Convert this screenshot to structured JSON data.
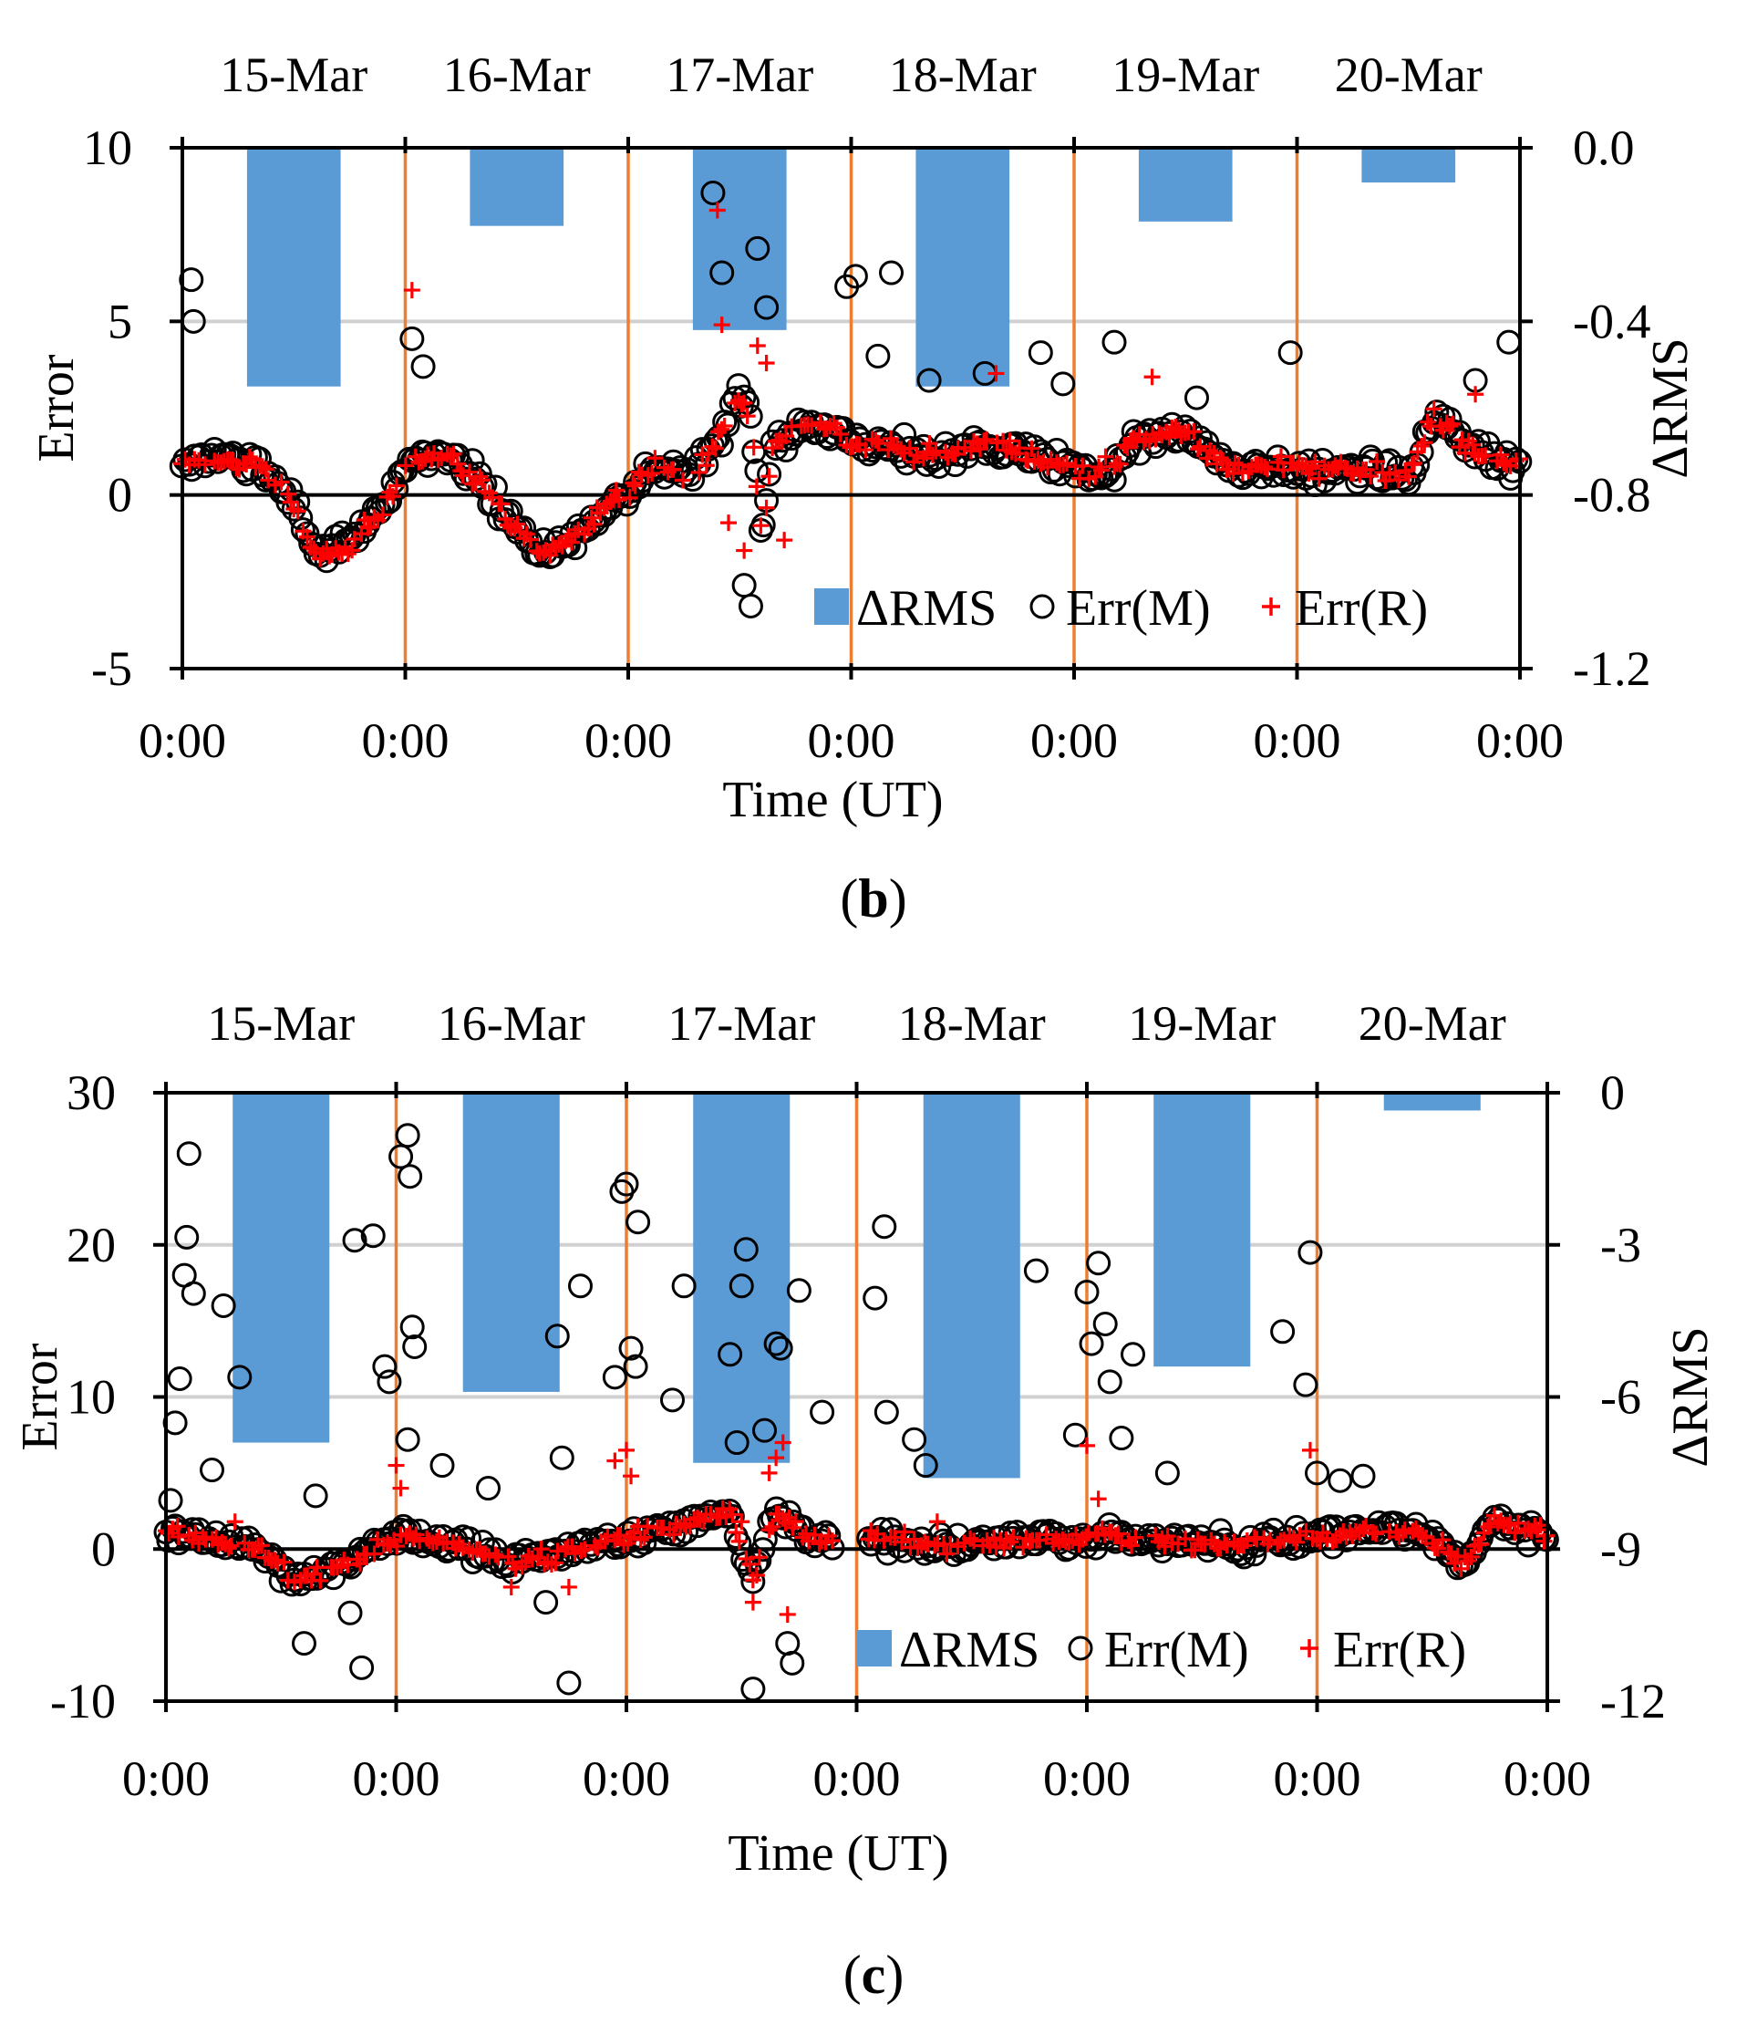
{
  "chart_data": [
    {
      "type": "bar+scatter",
      "panel_label": "b",
      "top_categories": [
        "15-Mar",
        "16-Mar",
        "17-Mar",
        "18-Mar",
        "19-Mar",
        "20-Mar"
      ],
      "bottom_ticks": [
        "0:00",
        "0:00",
        "0:00",
        "0:00",
        "0:00",
        "0:00",
        "0:00"
      ],
      "xlabel": "Time (UT)",
      "ylabel_left": "Error",
      "ylabel_right": "ΔRMS",
      "ylim_left": [
        -5,
        10
      ],
      "yticks_left": [
        "10",
        "5",
        "0",
        "-5"
      ],
      "ylim_right": [
        -1.2,
        0.0
      ],
      "yticks_right": [
        "0.0",
        "-0.4",
        "-0.8",
        "-1.2"
      ],
      "xlim_days": [
        0,
        6
      ],
      "legend": [
        "ΔRMS",
        "Err(M)",
        "Err(R)"
      ],
      "drms": {
        "name": "ΔRMS",
        "values": [
          -0.55,
          -0.18,
          -0.42,
          -0.55,
          -0.17,
          -0.08
        ]
      },
      "err_m_keypoints": [
        [
          0.0,
          0.8
        ],
        [
          0.05,
          1.0
        ],
        [
          0.3,
          1.0
        ],
        [
          0.45,
          0.3
        ],
        [
          0.6,
          -1.7
        ],
        [
          0.75,
          -1.5
        ],
        [
          0.9,
          -0.5
        ],
        [
          1.0,
          0.9
        ],
        [
          1.15,
          1.2
        ],
        [
          1.3,
          0.6
        ],
        [
          1.45,
          -0.5
        ],
        [
          1.6,
          -1.6
        ],
        [
          1.75,
          -1.3
        ],
        [
          1.9,
          -0.4
        ],
        [
          2.1,
          0.8
        ],
        [
          2.3,
          0.6
        ],
        [
          2.4,
          1.6
        ],
        [
          2.5,
          2.8
        ],
        [
          2.55,
          2.2
        ],
        [
          2.6,
          -1.2
        ],
        [
          2.65,
          1.5
        ],
        [
          2.8,
          2.2
        ],
        [
          3.0,
          1.5
        ],
        [
          3.2,
          1.4
        ],
        [
          3.4,
          1.1
        ],
        [
          3.6,
          1.5
        ],
        [
          3.9,
          1.0
        ],
        [
          4.1,
          0.6
        ],
        [
          4.3,
          1.6
        ],
        [
          4.5,
          1.8
        ],
        [
          4.7,
          0.8
        ],
        [
          5.0,
          0.8
        ],
        [
          5.3,
          0.7
        ],
        [
          5.5,
          0.6
        ],
        [
          5.62,
          2.3
        ],
        [
          5.8,
          1.2
        ],
        [
          6.0,
          0.8
        ]
      ],
      "err_m_outliers": [
        [
          0.04,
          6.2
        ],
        [
          0.05,
          5.0
        ],
        [
          1.03,
          4.5
        ],
        [
          1.08,
          3.7
        ],
        [
          2.38,
          8.7
        ],
        [
          2.42,
          6.4
        ],
        [
          2.58,
          7.1
        ],
        [
          2.62,
          5.4
        ],
        [
          2.55,
          -3.2
        ],
        [
          2.52,
          -2.6
        ],
        [
          2.98,
          6.0
        ],
        [
          3.02,
          6.3
        ],
        [
          3.18,
          6.4
        ],
        [
          3.12,
          4.0
        ],
        [
          3.35,
          3.3
        ],
        [
          3.6,
          3.5
        ],
        [
          3.85,
          4.1
        ],
        [
          3.95,
          3.2
        ],
        [
          4.18,
          4.4
        ],
        [
          4.55,
          2.8
        ],
        [
          4.97,
          4.1
        ],
        [
          5.95,
          4.4
        ],
        [
          5.8,
          3.3
        ]
      ],
      "err_r_outliers": [
        [
          1.03,
          5.9
        ],
        [
          2.4,
          8.2
        ],
        [
          2.42,
          4.9
        ],
        [
          2.45,
          -0.8
        ],
        [
          2.52,
          -1.6
        ],
        [
          2.58,
          4.3
        ],
        [
          2.62,
          3.8
        ],
        [
          2.7,
          -1.3
        ],
        [
          3.65,
          3.5
        ],
        [
          4.35,
          3.4
        ],
        [
          5.8,
          2.9
        ]
      ]
    },
    {
      "type": "bar+scatter",
      "panel_label": "c",
      "top_categories": [
        "15-Mar",
        "16-Mar",
        "17-Mar",
        "18-Mar",
        "19-Mar",
        "20-Mar"
      ],
      "bottom_ticks": [
        "0:00",
        "0:00",
        "0:00",
        "0:00",
        "0:00",
        "0:00",
        "0:00"
      ],
      "xlabel": "Time (UT)",
      "ylabel_left": "Error",
      "ylabel_right": "ΔRMS",
      "ylim_left": [
        -10,
        30
      ],
      "yticks_left": [
        "30",
        "20",
        "10",
        "0",
        "-10"
      ],
      "ylim_right": [
        -12,
        0
      ],
      "yticks_right": [
        "0",
        "-3",
        "-6",
        "-9",
        "-12"
      ],
      "xlim_days": [
        0,
        6
      ],
      "legend": [
        "ΔRMS",
        "Err(M)",
        "Err(R)"
      ],
      "drms": {
        "name": "ΔRMS",
        "values": [
          -6.9,
          -5.9,
          -7.3,
          -7.6,
          -5.4,
          -0.35
        ]
      },
      "err_m_keypoints": [
        [
          0.0,
          1.0
        ],
        [
          0.2,
          0.5
        ],
        [
          0.4,
          0.0
        ],
        [
          0.55,
          -2.0
        ],
        [
          0.7,
          -1.5
        ],
        [
          0.85,
          -0.5
        ],
        [
          1.0,
          0.8
        ],
        [
          1.2,
          0.5
        ],
        [
          1.35,
          0.0
        ],
        [
          1.5,
          -1.0
        ],
        [
          1.7,
          -0.3
        ],
        [
          1.9,
          0.5
        ],
        [
          2.1,
          1.0
        ],
        [
          2.3,
          1.8
        ],
        [
          2.45,
          2.5
        ],
        [
          2.55,
          -2.0
        ],
        [
          2.65,
          2.5
        ],
        [
          2.8,
          0.5
        ],
        [
          3.1,
          0.8
        ],
        [
          3.3,
          0.3
        ],
        [
          3.6,
          0.5
        ],
        [
          3.9,
          0.6
        ],
        [
          4.1,
          1.0
        ],
        [
          4.3,
          0.5
        ],
        [
          4.5,
          0.3
        ],
        [
          4.8,
          0.5
        ],
        [
          5.1,
          1.0
        ],
        [
          5.3,
          1.2
        ],
        [
          5.5,
          0.6
        ],
        [
          5.65,
          -1.0
        ],
        [
          5.75,
          1.8
        ],
        [
          6.0,
          1.0
        ]
      ],
      "err_m_outliers": [
        [
          0.02,
          3.2
        ],
        [
          0.04,
          8.3
        ],
        [
          0.06,
          11.2
        ],
        [
          0.08,
          18.0
        ],
        [
          0.09,
          20.5
        ],
        [
          0.1,
          26.0
        ],
        [
          0.12,
          16.8
        ],
        [
          0.2,
          5.2
        ],
        [
          0.25,
          16.0
        ],
        [
          0.32,
          11.3
        ],
        [
          0.6,
          -6.2
        ],
        [
          0.65,
          3.5
        ],
        [
          0.8,
          -4.2
        ],
        [
          0.82,
          20.3
        ],
        [
          0.9,
          20.6
        ],
        [
          0.85,
          -7.8
        ],
        [
          0.95,
          12.0
        ],
        [
          0.97,
          11.0
        ],
        [
          1.02,
          25.8
        ],
        [
          1.05,
          27.2
        ],
        [
          1.06,
          24.5
        ],
        [
          1.07,
          14.6
        ],
        [
          1.08,
          13.3
        ],
        [
          1.05,
          7.2
        ],
        [
          1.2,
          5.5
        ],
        [
          1.4,
          4.0
        ],
        [
          1.7,
          14.0
        ],
        [
          1.72,
          6.0
        ],
        [
          1.75,
          -8.8
        ],
        [
          1.8,
          17.3
        ],
        [
          1.65,
          -3.5
        ],
        [
          1.95,
          11.3
        ],
        [
          1.98,
          23.5
        ],
        [
          2.0,
          24.0
        ],
        [
          2.02,
          13.2
        ],
        [
          2.04,
          12.0
        ],
        [
          2.05,
          21.5
        ],
        [
          2.2,
          9.8
        ],
        [
          2.25,
          17.3
        ],
        [
          2.45,
          12.8
        ],
        [
          2.5,
          17.3
        ],
        [
          2.52,
          19.7
        ],
        [
          2.48,
          7.0
        ],
        [
          2.55,
          -9.2
        ],
        [
          2.6,
          7.8
        ],
        [
          2.65,
          13.5
        ],
        [
          2.67,
          13.2
        ],
        [
          2.7,
          -6.2
        ],
        [
          2.72,
          -7.5
        ],
        [
          2.75,
          17.0
        ],
        [
          2.85,
          9.0
        ],
        [
          3.08,
          16.5
        ],
        [
          3.12,
          21.2
        ],
        [
          3.13,
          9.0
        ],
        [
          3.25,
          7.2
        ],
        [
          3.3,
          5.5
        ],
        [
          3.78,
          18.3
        ],
        [
          3.95,
          7.5
        ],
        [
          4.0,
          16.9
        ],
        [
          4.02,
          13.5
        ],
        [
          4.05,
          18.8
        ],
        [
          4.08,
          14.8
        ],
        [
          4.1,
          11.0
        ],
        [
          4.15,
          7.3
        ],
        [
          4.2,
          12.8
        ],
        [
          4.35,
          5.0
        ],
        [
          4.85,
          14.3
        ],
        [
          4.95,
          10.8
        ],
        [
          4.97,
          19.5
        ],
        [
          5.0,
          5.0
        ],
        [
          5.1,
          4.5
        ],
        [
          5.2,
          4.8
        ]
      ],
      "err_r_outliers": [
        [
          0.05,
          1.5
        ],
        [
          0.3,
          1.8
        ],
        [
          1.0,
          5.5
        ],
        [
          1.02,
          4.0
        ],
        [
          1.5,
          -2.5
        ],
        [
          1.75,
          -2.5
        ],
        [
          1.95,
          5.8
        ],
        [
          2.0,
          6.5
        ],
        [
          2.02,
          4.8
        ],
        [
          2.5,
          1.8
        ],
        [
          2.55,
          -3.5
        ],
        [
          2.62,
          5.0
        ],
        [
          2.65,
          6.0
        ],
        [
          2.68,
          7.0
        ],
        [
          2.7,
          -4.3
        ],
        [
          3.35,
          1.8
        ],
        [
          4.0,
          6.8
        ],
        [
          4.05,
          3.3
        ],
        [
          4.97,
          6.5
        ]
      ]
    }
  ]
}
